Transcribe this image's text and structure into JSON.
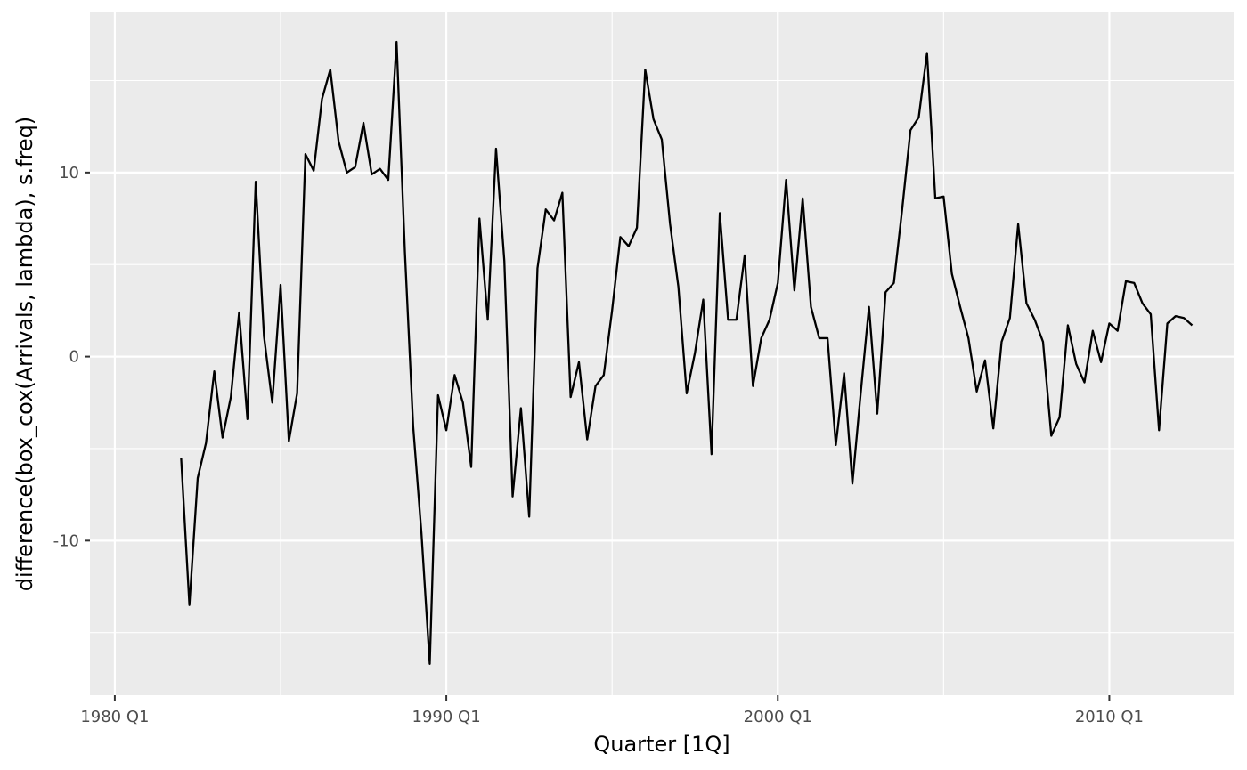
{
  "chart_data": {
    "type": "line",
    "title": "",
    "xlabel": "Quarter [1Q]",
    "ylabel": "difference(box_cox(Arrivals, lambda), s.freq)",
    "grid": true,
    "legend": "none",
    "colors": {
      "panel": "#ebebeb",
      "grid": "#ffffff",
      "line": "#000000",
      "tick_text": "#4d4d4d"
    },
    "x_start": "1982 Q1",
    "x_end": "2012 Q3",
    "xlim": [
      "1979 Q2",
      "2013 Q4"
    ],
    "ylim": [
      -18.4,
      18.7
    ],
    "x_ticks": [
      {
        "label": "1980 Q1",
        "quarter": "1980 Q1"
      },
      {
        "label": "1990 Q1",
        "quarter": "1990 Q1"
      },
      {
        "label": "2000 Q1",
        "quarter": "2000 Q1"
      },
      {
        "label": "2010 Q1",
        "quarter": "2010 Q1"
      }
    ],
    "y_ticks": [
      {
        "label": "-10",
        "value": -10
      },
      {
        "label": "0",
        "value": 0
      },
      {
        "label": "10",
        "value": 10
      }
    ],
    "series": [
      {
        "values": [
          -5.5,
          -13.5,
          -6.6,
          -4.7,
          -0.8,
          -4.4,
          -2.2,
          2.4,
          -3.4,
          9.5,
          1.1,
          -2.5,
          3.9,
          -4.6,
          -2.0,
          11.0,
          10.1,
          14.0,
          15.6,
          11.7,
          10.0,
          10.3,
          12.7,
          9.9,
          10.2,
          9.6,
          17.1,
          5.7,
          -3.8,
          -9.6,
          -16.7,
          -2.1,
          -4.0,
          -1.0,
          -2.5,
          -6.0,
          7.5,
          2.0,
          11.3,
          5.2,
          -7.6,
          -2.8,
          -8.7,
          4.8,
          8.0,
          7.4,
          8.9,
          -2.2,
          -0.3,
          -4.5,
          -1.6,
          -1.0,
          2.5,
          6.5,
          6.0,
          7.0,
          15.6,
          12.9,
          11.8,
          7.2,
          3.8,
          -2.0,
          0.2,
          3.1,
          -5.3,
          7.8,
          2.0,
          2.0,
          5.5,
          -1.6,
          1.0,
          2.0,
          4.0,
          9.6,
          3.6,
          8.6,
          2.7,
          1.0,
          1.0,
          -4.8,
          -0.9,
          -6.9,
          -2.0,
          2.7,
          -3.1,
          3.5,
          4.0,
          8.0,
          12.3,
          13.0,
          16.5,
          8.6,
          8.7,
          4.5,
          2.7,
          1.0,
          -1.9,
          -0.2,
          -3.9,
          0.8,
          2.1,
          7.2,
          2.9,
          2.0,
          0.8,
          -4.3,
          -3.3,
          1.7,
          -0.4,
          -1.4,
          1.4,
          -0.3,
          1.8,
          1.4,
          4.1,
          4.0,
          2.9,
          2.3,
          -4.0,
          1.8,
          2.2,
          2.1,
          1.7
        ]
      }
    ]
  }
}
